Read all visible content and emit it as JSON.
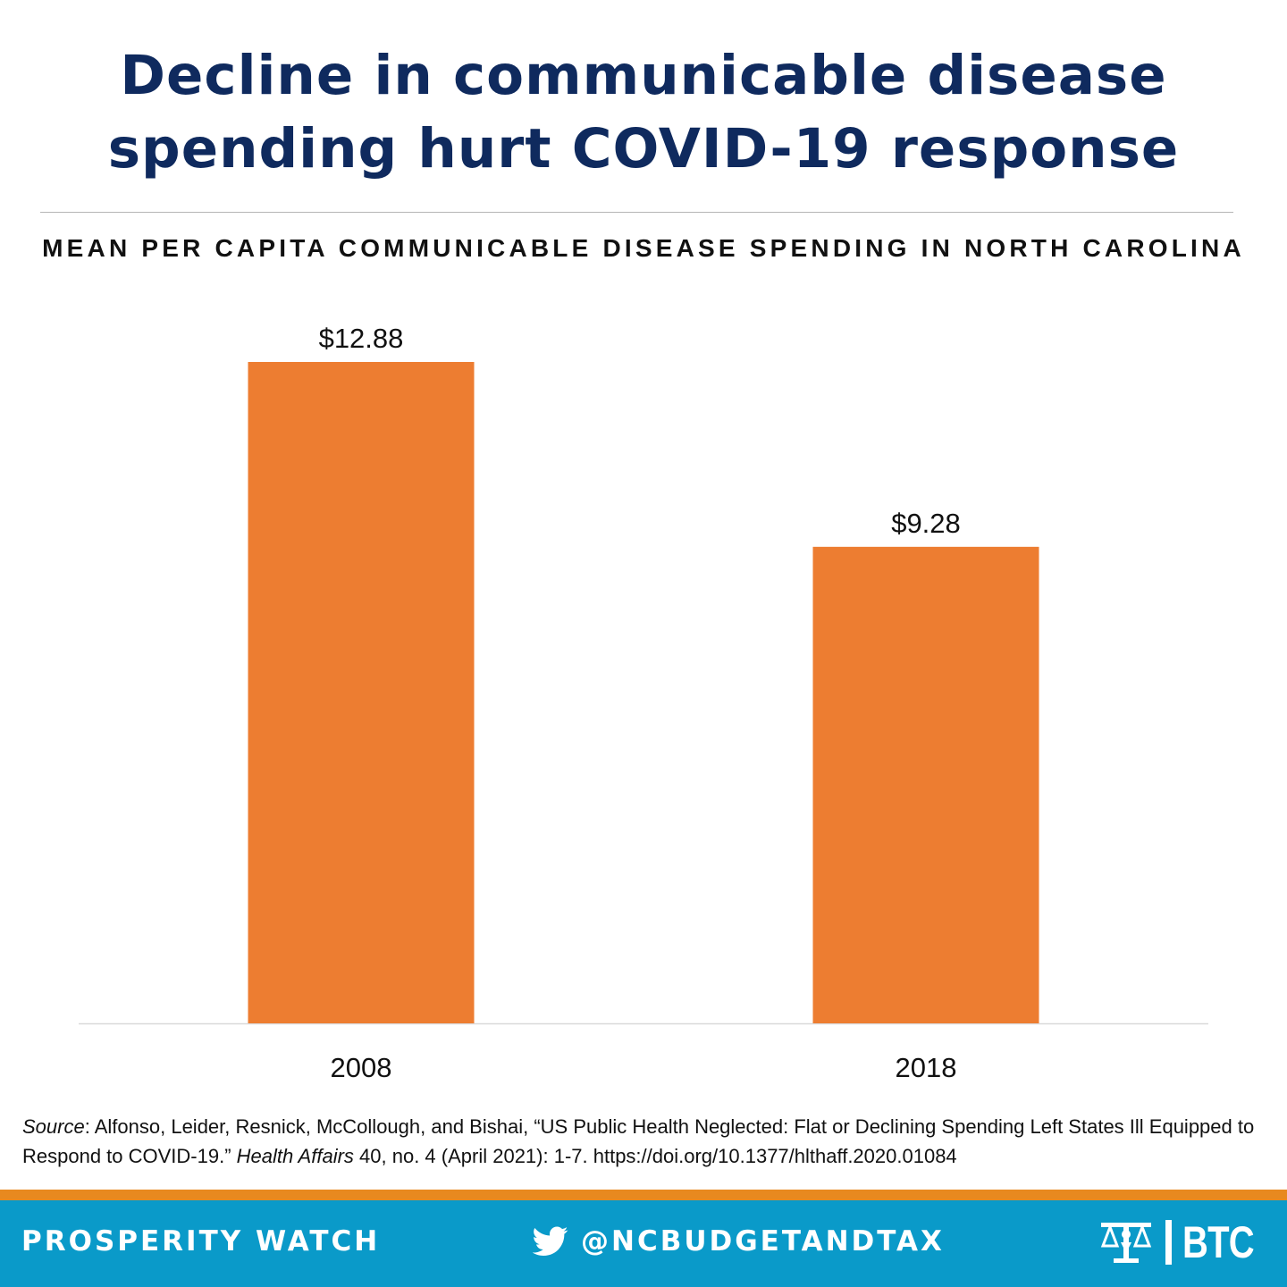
{
  "header": {
    "title_line1": "Decline in communicable disease",
    "title_line2": "spending hurt COVID-19 response"
  },
  "chart_data": {
    "type": "bar",
    "title": "MEAN PER CAPITA COMMUNICABLE DISEASE SPENDING IN NORTH CAROLINA",
    "categories": [
      "2008",
      "2018"
    ],
    "values": [
      12.88,
      9.28
    ],
    "data_labels": [
      "$12.88",
      "$9.28"
    ],
    "xlabel": "",
    "ylabel": "",
    "ylim": [
      0,
      12.88
    ],
    "grid": false,
    "legend": "none",
    "bar_color": "#ed7d31"
  },
  "source": {
    "label": "Source",
    "text1": ": Alfonso, Leider, Resnick, McCollough, and Bishai, “US Public Health Neglected: Flat or Declining Spending Left States Ill Equipped to Respond to COVID-19.” ",
    "journal": "Health Affairs",
    "text2": " 40, no. 4 (April 2021): 1-7. https://doi.org/10.1377/hlthaff.2020.01084"
  },
  "footer": {
    "left_label": "PROSPERITY WATCH",
    "twitter_handle": "@NCBUDGETANDTAX",
    "logo_text": "BTC",
    "band_color": "#0a9ac9",
    "accent_color": "#e8891f",
    "twitter_icon": "twitter-bird-icon",
    "logo_icon": "budget-scales-logo-icon"
  }
}
